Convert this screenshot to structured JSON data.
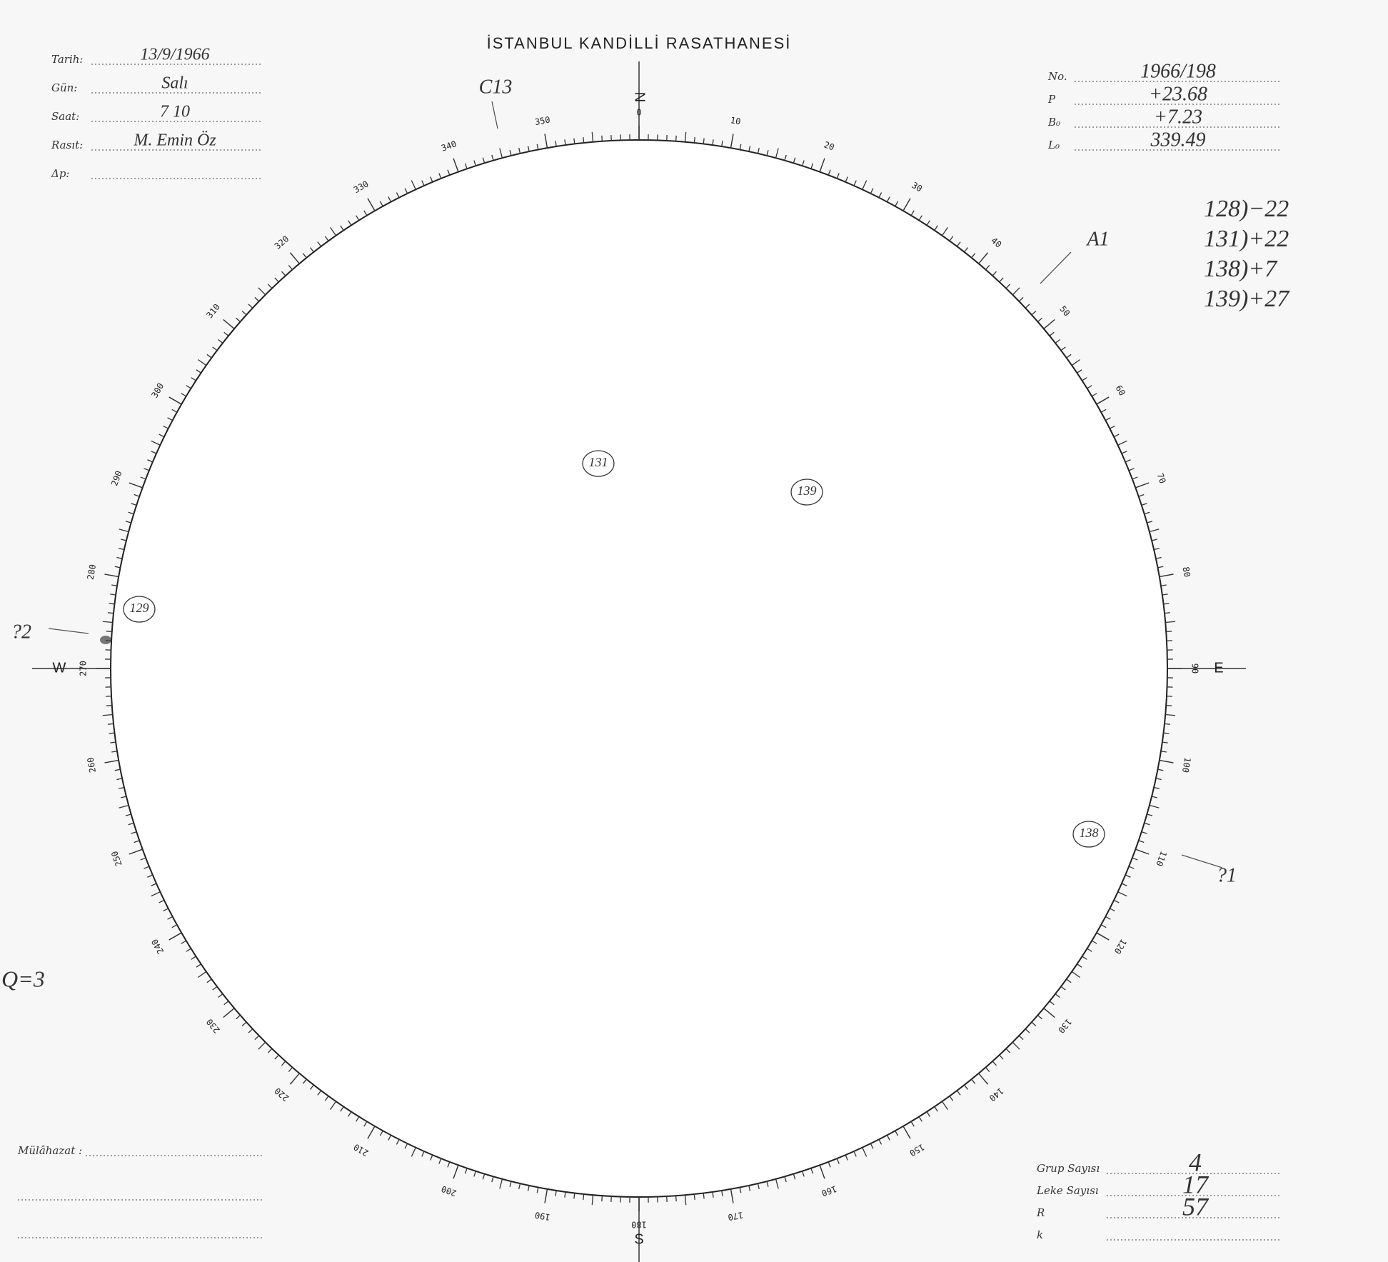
{
  "header": {
    "title": "İSTANBUL KANDİLLİ RASATHANESİ"
  },
  "observation": [
    {
      "label": "Tarih:",
      "value": "13/9/1966"
    },
    {
      "label": "Gün:",
      "value": "Salı"
    },
    {
      "label": "Saat:",
      "value": "7 10"
    },
    {
      "label": "Rasıt:",
      "value": "M. Emin Öz"
    },
    {
      "label": "Δp:"
    }
  ],
  "solar": [
    {
      "label": "No.",
      "value": "1966/198"
    },
    {
      "label": "P",
      "value": "+23.68"
    },
    {
      "label": "B₀",
      "value": "+7.23"
    },
    {
      "label": "L₀",
      "value": "339.49"
    }
  ],
  "notes": [
    "128)−22",
    "131)+22",
    "138)+7",
    "139)+27"
  ],
  "disk": {
    "scale": [
      0,
      10,
      20,
      30,
      40,
      50,
      60,
      70,
      80,
      90,
      100,
      110,
      120,
      130,
      140,
      150,
      160,
      170,
      180,
      190,
      200,
      210,
      220,
      230,
      240,
      250,
      260,
      270,
      280,
      290,
      300,
      310,
      320,
      330,
      340,
      350
    ],
    "directions": [
      "N",
      "E",
      "S",
      "W"
    ],
    "groups": [
      "131",
      "139",
      "129",
      "138"
    ],
    "markers": [
      "C13",
      "A1",
      "?1",
      "?2"
    ],
    "q": "Q=3"
  },
  "remarks": {
    "label": "Mülâhazat :"
  },
  "counts": [
    {
      "label": "Grup Sayısı",
      "value": 4
    },
    {
      "label": "Leke Sayısı",
      "value": 17
    },
    {
      "label": "R",
      "value": 57
    },
    {
      "label": "k"
    }
  ]
}
